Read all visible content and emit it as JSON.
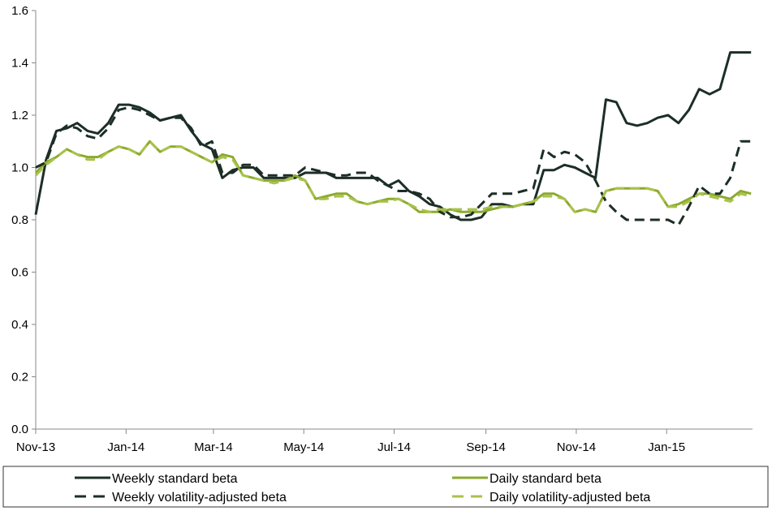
{
  "chart_data": {
    "type": "line",
    "title": "",
    "xlabel": "",
    "ylabel": "",
    "x": [
      "2013-11-01",
      "2013-11-08",
      "2013-11-15",
      "2013-11-22",
      "2013-11-29",
      "2013-12-06",
      "2013-12-13",
      "2013-12-20",
      "2013-12-27",
      "2014-01-03",
      "2014-01-10",
      "2014-01-17",
      "2014-01-24",
      "2014-01-31",
      "2014-02-07",
      "2014-02-14",
      "2014-02-21",
      "2014-02-28",
      "2014-03-07",
      "2014-03-14",
      "2014-03-21",
      "2014-03-28",
      "2014-04-04",
      "2014-04-11",
      "2014-04-18",
      "2014-04-25",
      "2014-05-02",
      "2014-05-09",
      "2014-05-16",
      "2014-05-23",
      "2014-05-30",
      "2014-06-06",
      "2014-06-13",
      "2014-06-20",
      "2014-06-27",
      "2014-07-04",
      "2014-07-11",
      "2014-07-18",
      "2014-07-25",
      "2014-08-01",
      "2014-08-08",
      "2014-08-15",
      "2014-08-22",
      "2014-08-29",
      "2014-09-05",
      "2014-09-12",
      "2014-09-19",
      "2014-09-26",
      "2014-10-03",
      "2014-10-10",
      "2014-10-17",
      "2014-10-24",
      "2014-10-31",
      "2014-11-07",
      "2014-11-14",
      "2014-11-21",
      "2014-11-28",
      "2014-12-05",
      "2014-12-12",
      "2014-12-19",
      "2014-12-26",
      "2015-01-02",
      "2015-01-09",
      "2015-01-16",
      "2015-01-23",
      "2015-01-30",
      "2015-02-06",
      "2015-02-13",
      "2015-02-20",
      "2015-02-27"
    ],
    "x_ticks": [
      "Nov-13",
      "Jan-14",
      "Mar-14",
      "May-14",
      "Jul-14",
      "Sep-14",
      "Nov-14",
      "Jan-15"
    ],
    "x_tick_dates": [
      "2013-11-01",
      "2014-01-01",
      "2014-03-01",
      "2014-05-01",
      "2014-07-01",
      "2014-09-01",
      "2014-11-01",
      "2015-01-01"
    ],
    "x_range": [
      "2013-11-01",
      "2015-02-28"
    ],
    "ylim": [
      0,
      1.6
    ],
    "y_ticks": [
      "0.0",
      "0.2",
      "0.4",
      "0.6",
      "0.8",
      "1.0",
      "1.2",
      "1.4",
      "1.6"
    ],
    "y_tick_values": [
      0,
      0.2,
      0.4,
      0.6,
      0.8,
      1.0,
      1.2,
      1.4,
      1.6
    ],
    "grid": false,
    "legend_position": "bottom",
    "series": [
      {
        "name": "Weekly standard beta",
        "color": "#1c2e26",
        "dash": "solid",
        "values": [
          0.82,
          1.03,
          1.14,
          1.15,
          1.17,
          1.14,
          1.13,
          1.17,
          1.24,
          1.24,
          1.23,
          1.21,
          1.18,
          1.19,
          1.2,
          1.14,
          1.09,
          1.07,
          0.96,
          0.99,
          1.0,
          1.0,
          0.96,
          0.96,
          0.96,
          0.96,
          0.98,
          0.98,
          0.98,
          0.96,
          0.96,
          0.96,
          0.96,
          0.96,
          0.93,
          0.95,
          0.91,
          0.89,
          0.86,
          0.85,
          0.82,
          0.8,
          0.8,
          0.81,
          0.86,
          0.86,
          0.85,
          0.86,
          0.86,
          0.99,
          0.99,
          1.01,
          1.0,
          0.98,
          0.96,
          1.26,
          1.25,
          1.17,
          1.16,
          1.17,
          1.19,
          1.2,
          1.17,
          1.22,
          1.3,
          1.28,
          1.3,
          1.44,
          1.44,
          1.44
        ]
      },
      {
        "name": "Daily standard beta",
        "color": "#8caa2e",
        "dash": "solid",
        "values": [
          0.98,
          1.02,
          1.04,
          1.07,
          1.05,
          1.04,
          1.04,
          1.06,
          1.08,
          1.07,
          1.05,
          1.1,
          1.06,
          1.08,
          1.08,
          1.06,
          1.04,
          1.02,
          1.05,
          1.04,
          0.97,
          0.96,
          0.95,
          0.95,
          0.95,
          0.97,
          0.95,
          0.88,
          0.89,
          0.9,
          0.9,
          0.87,
          0.86,
          0.87,
          0.88,
          0.88,
          0.86,
          0.83,
          0.83,
          0.83,
          0.84,
          0.83,
          0.83,
          0.83,
          0.84,
          0.85,
          0.85,
          0.86,
          0.87,
          0.9,
          0.9,
          0.88,
          0.83,
          0.84,
          0.83,
          0.91,
          0.92,
          0.92,
          0.92,
          0.92,
          0.91,
          0.85,
          0.86,
          0.88,
          0.9,
          0.9,
          0.89,
          0.88,
          0.91,
          0.9
        ]
      },
      {
        "name": "Weekly volatility-adjusted beta",
        "color": "#1c2e26",
        "dash": "dashed",
        "values": [
          1.0,
          1.02,
          1.13,
          1.16,
          1.15,
          1.12,
          1.11,
          1.15,
          1.22,
          1.23,
          1.22,
          1.2,
          1.18,
          1.19,
          1.19,
          1.15,
          1.08,
          1.1,
          0.98,
          0.98,
          1.01,
          1.01,
          0.97,
          0.97,
          0.97,
          0.97,
          1.0,
          0.99,
          0.98,
          0.97,
          0.97,
          0.98,
          0.98,
          0.95,
          0.93,
          0.91,
          0.91,
          0.9,
          0.88,
          0.83,
          0.81,
          0.81,
          0.82,
          0.86,
          0.9,
          0.9,
          0.9,
          0.91,
          0.92,
          1.07,
          1.04,
          1.06,
          1.05,
          1.02,
          0.95,
          0.87,
          0.83,
          0.8,
          0.8,
          0.8,
          0.8,
          0.8,
          0.78,
          0.85,
          0.93,
          0.9,
          0.9,
          0.96,
          1.1,
          1.1
        ]
      },
      {
        "name": "Daily volatility-adjusted beta",
        "color": "#a8c24c",
        "dash": "dashed",
        "values": [
          0.97,
          1.01,
          1.04,
          1.07,
          1.05,
          1.03,
          1.03,
          1.06,
          1.08,
          1.07,
          1.05,
          1.1,
          1.06,
          1.08,
          1.08,
          1.06,
          1.04,
          1.02,
          1.04,
          1.03,
          0.97,
          0.96,
          0.95,
          0.94,
          0.95,
          0.96,
          0.95,
          0.88,
          0.88,
          0.89,
          0.89,
          0.87,
          0.86,
          0.87,
          0.87,
          0.88,
          0.86,
          0.84,
          0.83,
          0.84,
          0.84,
          0.84,
          0.84,
          0.84,
          0.85,
          0.85,
          0.85,
          0.86,
          0.87,
          0.89,
          0.89,
          0.88,
          0.83,
          0.84,
          0.83,
          0.91,
          0.92,
          0.92,
          0.92,
          0.92,
          0.91,
          0.85,
          0.85,
          0.87,
          0.9,
          0.89,
          0.88,
          0.87,
          0.9,
          0.89
        ]
      }
    ]
  }
}
